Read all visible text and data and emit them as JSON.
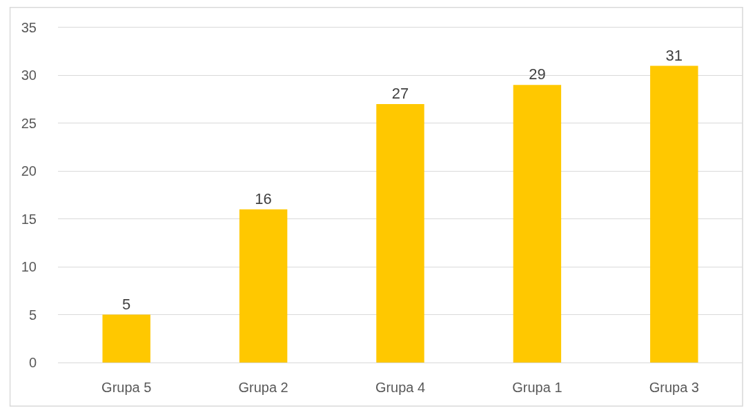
{
  "chart_data": {
    "type": "bar",
    "categories": [
      "Grupa 5",
      "Grupa 2",
      "Grupa 4",
      "Grupa 1",
      "Grupa 3"
    ],
    "values": [
      5,
      16,
      27,
      29,
      31
    ],
    "color": "#ffc800",
    "ylim": [
      0,
      35
    ],
    "yticks": [
      0,
      5,
      10,
      15,
      20,
      25,
      30,
      35
    ],
    "grid": "y",
    "data_labels": true
  }
}
